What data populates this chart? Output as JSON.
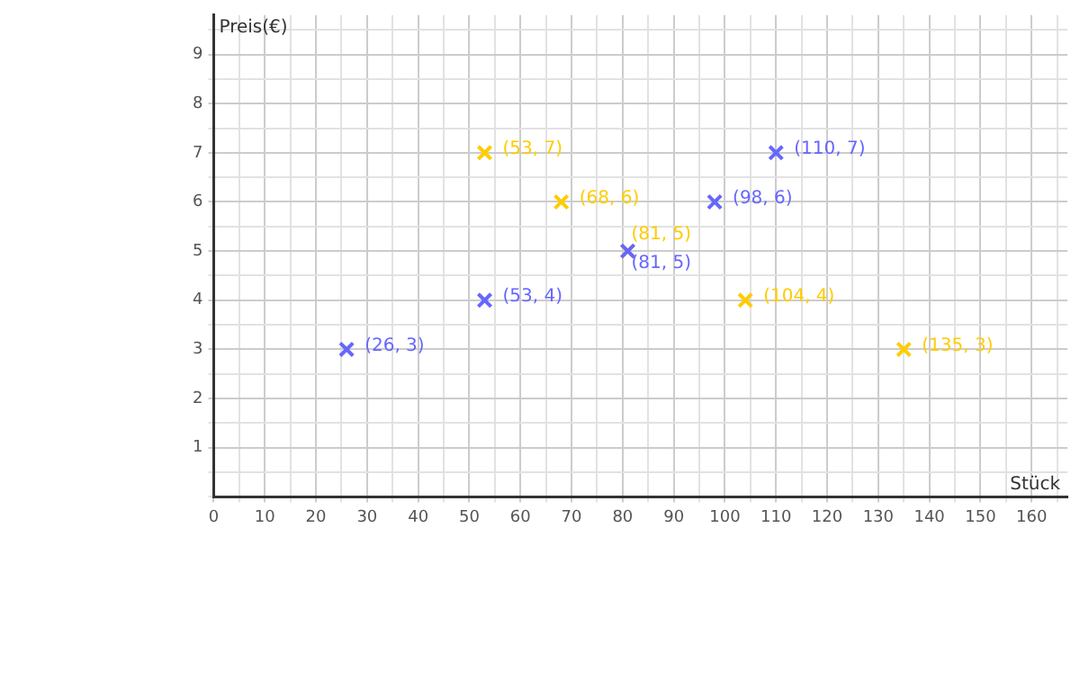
{
  "chart_data": {
    "type": "scatter",
    "xlabel": "Stück",
    "ylabel": "Preis(€)",
    "series": [
      {
        "color": "#6666ff",
        "x": [
          26,
          53,
          81,
          98,
          110
        ],
        "values": [
          3,
          4,
          5,
          6,
          7
        ],
        "value_labels": [
          "(26, 3)",
          "(53, 4)",
          "(81, 5)",
          "(98, 6)",
          "(110, 7)"
        ]
      },
      {
        "color": "#ffcc00",
        "x": [
          53,
          68,
          81,
          104,
          135
        ],
        "values": [
          7,
          6,
          5,
          4,
          3
        ],
        "value_labels": [
          "(53, 7)",
          "(68, 6)",
          "(81, 5)",
          "(104, 4)",
          "(135, 3)"
        ]
      }
    ],
    "xlim": [
      0,
      167
    ],
    "ylim": [
      0,
      9.8
    ],
    "xticks": [
      0,
      {
        "value": 5,
        "label": null
      },
      10,
      {
        "value": 15,
        "label": null
      },
      20,
      {
        "value": 25,
        "label": null
      },
      30,
      {
        "value": 35,
        "label": null
      },
      40,
      {
        "value": 45,
        "label": null
      },
      50,
      {
        "value": 55,
        "label": null
      },
      60,
      {
        "value": 65,
        "label": null
      },
      70,
      {
        "value": 75,
        "label": null
      },
      80,
      {
        "value": 85,
        "label": null
      },
      90,
      {
        "value": 95,
        "label": null
      },
      100,
      {
        "value": 105,
        "label": null
      },
      110,
      {
        "value": 115,
        "label": null
      },
      120,
      {
        "value": 125,
        "label": null
      },
      130,
      {
        "value": 135,
        "label": null
      },
      140,
      {
        "value": 145,
        "label": null
      },
      150,
      {
        "value": 155,
        "label": null
      },
      160,
      {
        "value": 165,
        "label": null
      }
    ],
    "yticks": [
      {
        "value": 0,
        "label": null
      },
      {
        "value": 0.5,
        "label": null
      },
      1,
      {
        "value": 1.5,
        "label": null
      },
      2,
      {
        "value": 2.5,
        "label": null
      },
      3,
      {
        "value": 3.5,
        "label": null
      },
      4,
      {
        "value": 4.5,
        "label": null
      },
      5,
      {
        "value": 5.5,
        "label": null
      },
      6,
      {
        "value": 6.5,
        "label": null
      },
      7,
      {
        "value": 7.5,
        "label": null
      },
      8,
      {
        "value": 8.5,
        "label": null
      },
      9,
      {
        "value": 9.5,
        "label": null
      }
    ],
    "grid": true,
    "legend": false,
    "marker": "cross"
  }
}
